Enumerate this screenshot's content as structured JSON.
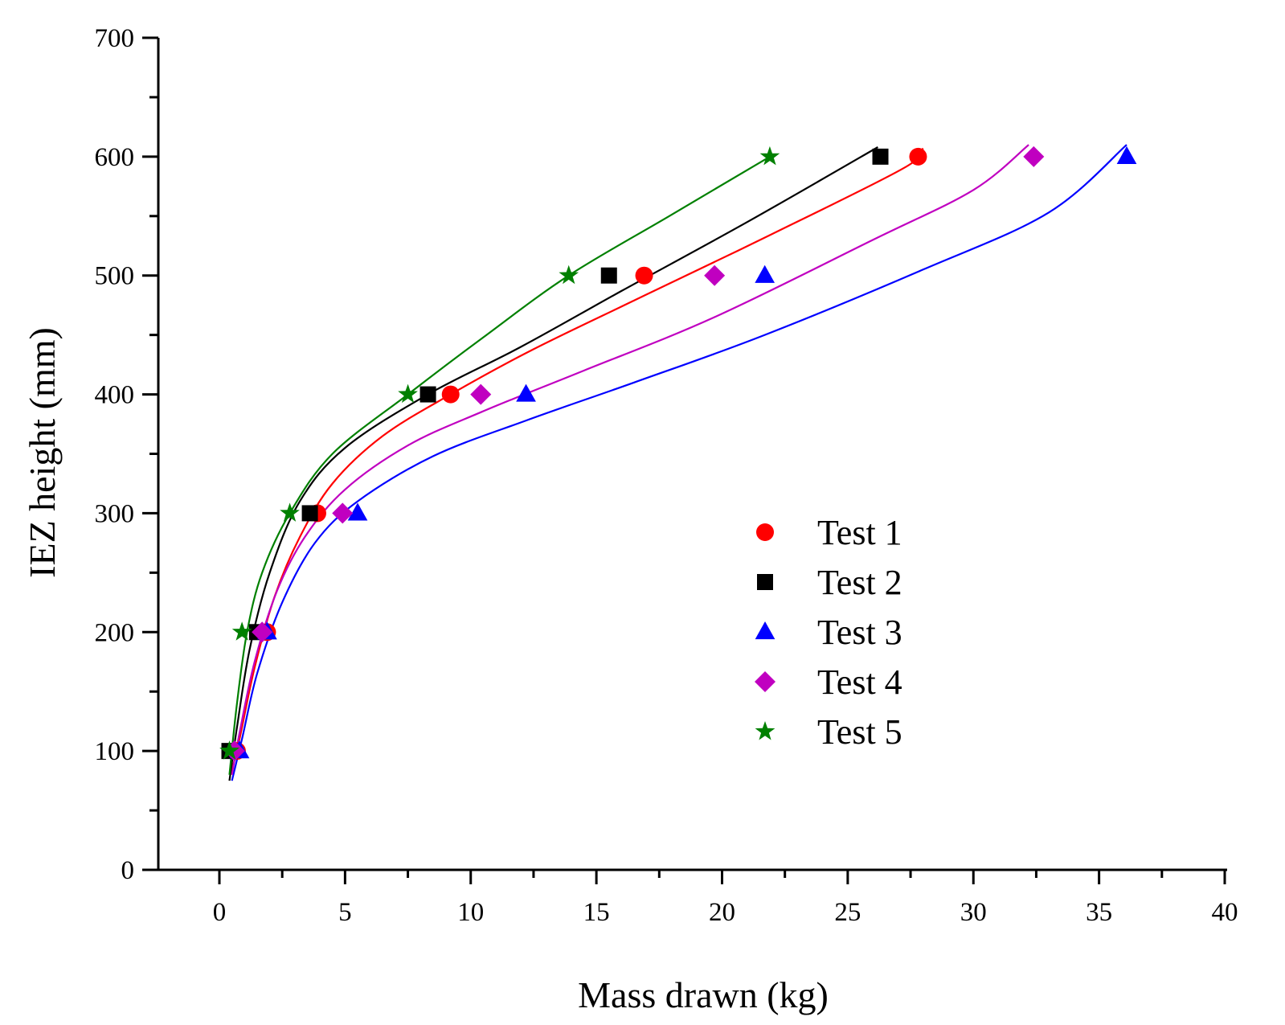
{
  "chart_data": {
    "type": "scatter",
    "title": "",
    "xlabel": "Mass drawn (kg)",
    "ylabel": "IEZ height (mm)",
    "xlim": [
      -2.5,
      40
    ],
    "ylim": [
      0,
      700
    ],
    "x_ticks": [
      0,
      5,
      10,
      15,
      20,
      25,
      30,
      35,
      40
    ],
    "y_ticks": [
      0,
      100,
      200,
      300,
      400,
      500,
      600,
      700
    ],
    "x_tick_labels": [
      "0",
      "5",
      "10",
      "15",
      "20",
      "25",
      "30",
      "35",
      "40"
    ],
    "y_tick_labels": [
      "0",
      "100",
      "200",
      "300",
      "400",
      "500",
      "600",
      "700"
    ],
    "grid": false,
    "legend_position": "center-right",
    "series": [
      {
        "name": "Test 1",
        "marker": "circle",
        "color": "#ff0000",
        "x": [
          0.7,
          1.9,
          3.9,
          9.2,
          16.9,
          27.8
        ],
        "y": [
          100,
          200,
          300,
          400,
          500,
          600
        ],
        "fit": [
          [
            0.45,
            80
          ],
          [
            0.8,
            110
          ],
          [
            1.4,
            170
          ],
          [
            2.2,
            230
          ],
          [
            3.2,
            280
          ],
          [
            4.5,
            325
          ],
          [
            6.5,
            365
          ],
          [
            9.2,
            400
          ],
          [
            12.5,
            438
          ],
          [
            16.9,
            483
          ],
          [
            22,
            535
          ],
          [
            27.2,
            590
          ],
          [
            28.0,
            607
          ]
        ]
      },
      {
        "name": "Test 2",
        "marker": "square",
        "color": "#000000",
        "x": [
          0.4,
          1.5,
          3.6,
          8.3,
          15.5,
          26.3
        ],
        "y": [
          100,
          200,
          300,
          400,
          500,
          600
        ],
        "fit": [
          [
            0.4,
            75
          ],
          [
            0.7,
            120
          ],
          [
            1.2,
            185
          ],
          [
            2.0,
            250
          ],
          [
            3.2,
            310
          ],
          [
            5.0,
            355
          ],
          [
            8.3,
            400
          ],
          [
            12,
            440
          ],
          [
            16,
            487
          ],
          [
            21,
            545
          ],
          [
            26.2,
            608
          ]
        ]
      },
      {
        "name": "Test 3",
        "marker": "triangle",
        "color": "#0000ff",
        "x": [
          0.8,
          1.9,
          5.5,
          12.2,
          21.7,
          36.1
        ],
        "y": [
          100,
          200,
          300,
          400,
          500,
          600
        ],
        "fit": [
          [
            0.5,
            75
          ],
          [
            0.9,
            110
          ],
          [
            1.5,
            165
          ],
          [
            2.5,
            225
          ],
          [
            3.8,
            275
          ],
          [
            5.5,
            310
          ],
          [
            8.5,
            348
          ],
          [
            12.2,
            378
          ],
          [
            16.5,
            410
          ],
          [
            21.7,
            450
          ],
          [
            28,
            505
          ],
          [
            33,
            553
          ],
          [
            36.1,
            610
          ]
        ]
      },
      {
        "name": "Test 4",
        "marker": "diamond",
        "color": "#c000c0",
        "x": [
          0.6,
          1.7,
          4.9,
          10.4,
          19.7,
          32.4
        ],
        "y": [
          100,
          200,
          300,
          400,
          500,
          600
        ],
        "fit": [
          [
            0.5,
            80
          ],
          [
            0.8,
            115
          ],
          [
            1.4,
            175
          ],
          [
            2.3,
            235
          ],
          [
            3.4,
            280
          ],
          [
            5.0,
            320
          ],
          [
            7.5,
            357
          ],
          [
            10.4,
            385
          ],
          [
            14.5,
            420
          ],
          [
            19.7,
            465
          ],
          [
            26,
            530
          ],
          [
            30,
            572
          ],
          [
            32.2,
            610
          ]
        ]
      },
      {
        "name": "Test 5",
        "marker": "star",
        "color": "#008000",
        "x": [
          0.4,
          0.9,
          2.8,
          7.5,
          13.9,
          21.9
        ],
        "y": [
          100,
          200,
          300,
          400,
          500,
          600
        ],
        "fit": [
          [
            0.4,
            80
          ],
          [
            0.7,
            140
          ],
          [
            1.1,
            200
          ],
          [
            1.7,
            250
          ],
          [
            2.8,
            300
          ],
          [
            4.5,
            350
          ],
          [
            7.5,
            400
          ],
          [
            10.5,
            448
          ],
          [
            13.9,
            500
          ],
          [
            17.9,
            550
          ],
          [
            21.9,
            600
          ]
        ]
      }
    ]
  }
}
